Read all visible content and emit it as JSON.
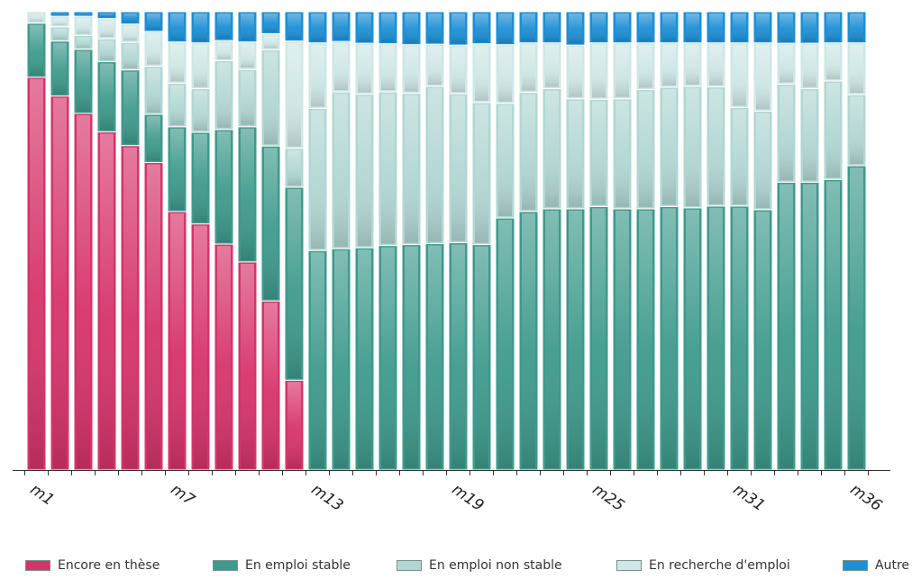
{
  "chart_data": {
    "type": "bar",
    "stacked": true,
    "categories": [
      "m1",
      "m2",
      "m3",
      "m4",
      "m5",
      "m6",
      "m7",
      "m8",
      "m9",
      "m10",
      "m11",
      "m12",
      "m13",
      "m14",
      "m15",
      "m16",
      "m17",
      "m18",
      "m19",
      "m20",
      "m21",
      "m22",
      "m23",
      "m24",
      "m25",
      "m26",
      "m27",
      "m28",
      "m29",
      "m30",
      "m31",
      "m32",
      "m33",
      "m34",
      "m35",
      "m36"
    ],
    "tick_labels": [
      {
        "index": 0,
        "label": "m1"
      },
      {
        "index": 6,
        "label": "m7"
      },
      {
        "index": 12,
        "label": "m13"
      },
      {
        "index": 18,
        "label": "m19"
      },
      {
        "index": 24,
        "label": "m25"
      },
      {
        "index": 30,
        "label": "m31"
      },
      {
        "index": 35,
        "label": "m36"
      }
    ],
    "ylim": [
      0,
      100
    ],
    "series": [
      {
        "name": "Encore en thèse",
        "color": "#d6336b",
        "values": [
          85.7,
          81.6,
          77.8,
          73.8,
          70.8,
          67.1,
          56.4,
          53.7,
          49.3,
          45.4,
          36.9,
          19.6,
          0,
          0,
          0,
          0,
          0,
          0,
          0,
          0,
          0,
          0,
          0,
          0,
          0,
          0,
          0,
          0,
          0,
          0,
          0,
          0,
          0,
          0,
          0,
          0
        ]
      },
      {
        "name": "En emploi stable",
        "color": "#3e9a8c",
        "values": [
          11.8,
          12.0,
          14.0,
          15.3,
          16.5,
          10.5,
          18.5,
          20.0,
          25.0,
          29.5,
          33.8,
          42.1,
          47.9,
          48.3,
          48.5,
          49.0,
          49.2,
          49.4,
          49.6,
          49.2,
          55.0,
          56.4,
          57.0,
          57.0,
          57.5,
          57.0,
          57.0,
          57.5,
          57.2,
          57.6,
          57.6,
          56.8,
          62.8,
          62.8,
          63.4,
          66.4
        ]
      },
      {
        "name": "En emploi non stable",
        "color": "#b2d7d3",
        "values": [
          0,
          3.1,
          3.0,
          5.0,
          6.0,
          10.5,
          9.5,
          9.5,
          15.0,
          12.5,
          21.0,
          8.5,
          31.0,
          34.2,
          33.5,
          33.5,
          33.0,
          34.3,
          32.5,
          31.0,
          25.0,
          26.0,
          26.2,
          24.0,
          23.4,
          24.0,
          26.0,
          26.0,
          26.5,
          26.0,
          21.5,
          21.5,
          21.4,
          20.4,
          21.5,
          15.5
        ]
      },
      {
        "name": "En recherche d'emploi",
        "color": "#cfe7e6",
        "values": [
          2.5,
          2.3,
          4.2,
          4.4,
          4.0,
          7.6,
          9.0,
          10.0,
          4.4,
          6.0,
          3.5,
          23.4,
          14.3,
          11.0,
          11.1,
          10.5,
          10.6,
          9.2,
          10.6,
          12.8,
          12.8,
          10.8,
          10.0,
          11.7,
          12.3,
          12.2,
          10.2,
          9.7,
          9.5,
          9.6,
          14.1,
          14.9,
          8.9,
          9.9,
          8.3,
          11.3
        ]
      },
      {
        "name": "Autre",
        "color": "#1d8fd4",
        "values": [
          0,
          1.0,
          1.0,
          1.5,
          2.7,
          4.3,
          6.6,
          6.8,
          6.3,
          6.6,
          4.8,
          6.4,
          6.8,
          6.5,
          6.9,
          7.0,
          7.2,
          7.1,
          7.3,
          7.0,
          7.2,
          6.8,
          6.8,
          7.3,
          6.8,
          6.8,
          6.8,
          6.8,
          6.8,
          6.8,
          6.8,
          6.8,
          6.9,
          6.9,
          6.8,
          6.8
        ]
      }
    ]
  }
}
